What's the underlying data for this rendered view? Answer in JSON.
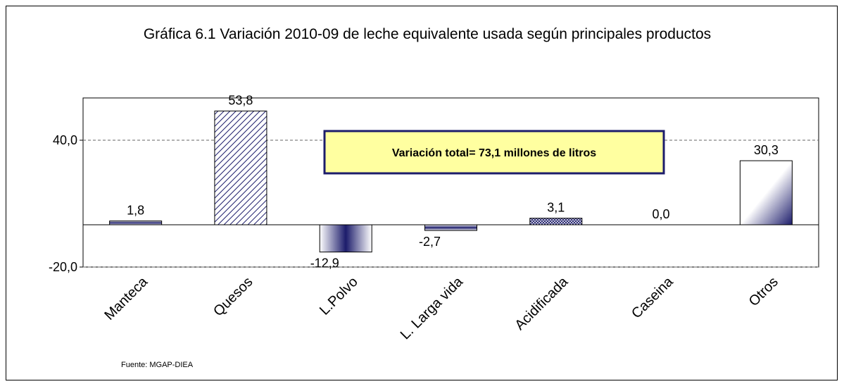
{
  "chart_data": {
    "type": "bar",
    "title": "Gráfica 6.1 Variación 2010-09 de leche equivalente usada según principales productos",
    "categories": [
      "Manteca",
      "Quesos",
      "L.Polvo",
      "L. Larga vida",
      "Acidificada",
      "Caseina",
      "Otros"
    ],
    "values": [
      1.8,
      53.8,
      -12.9,
      -2.7,
      3.1,
      0.0,
      30.3
    ],
    "value_labels": [
      "1,8",
      "53,8",
      "-12,9",
      "-2,7",
      "3,1",
      "0,0",
      "30,3"
    ],
    "color": "#1c1c6b",
    "ylim": [
      -20,
      60
    ],
    "yticks": [
      {
        "value": -20,
        "label": "-20,0"
      },
      {
        "value": 40,
        "label": "40,0"
      }
    ],
    "grid": true,
    "annotation": "Variación total= 73,1 millones de litros",
    "source": "Fuente: MGAP-DIEA"
  }
}
